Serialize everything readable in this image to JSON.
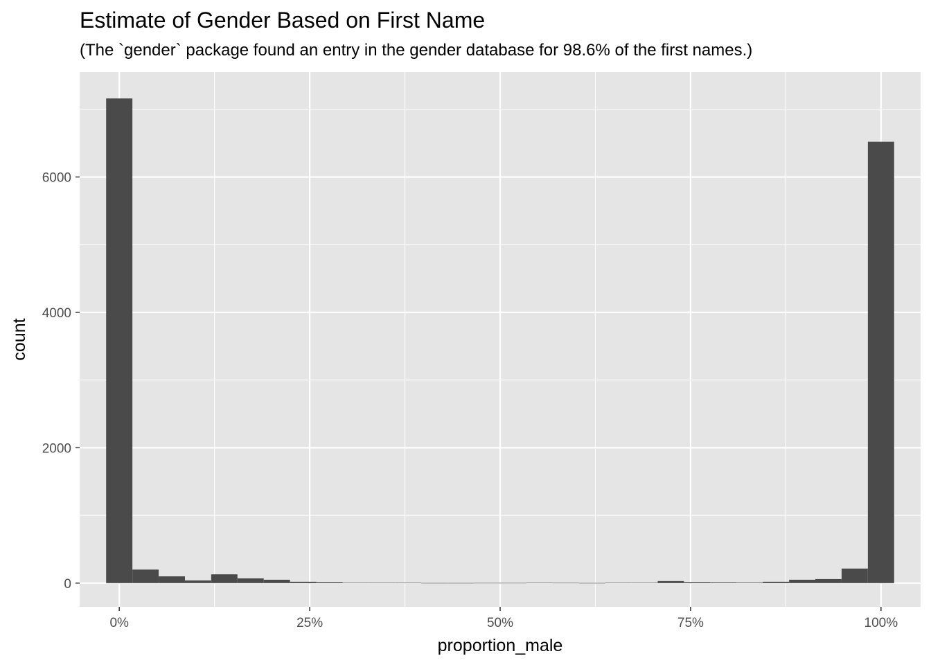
{
  "title": "Estimate of Gender Based on First Name",
  "subtitle": "(The `gender` package found an entry  in the gender database for 98.6% of the first names.)",
  "chart_data": {
    "type": "bar",
    "title": "Estimate of Gender Based on First Name",
    "subtitle": "(The `gender` package found an entry  in the gender database for 98.6% of the first names.)",
    "xlabel": "proportion_male",
    "ylabel": "count",
    "xlim": [
      -0.052,
      1.052
    ],
    "ylim": [
      -350,
      7550
    ],
    "x_ticks": [
      0,
      0.25,
      0.5,
      0.75,
      1
    ],
    "x_tick_labels": [
      "0%",
      "25%",
      "50%",
      "75%",
      "100%"
    ],
    "y_ticks": [
      0,
      2000,
      4000,
      6000
    ],
    "y_tick_labels": [
      "0",
      "2000",
      "4000",
      "6000"
    ],
    "bin_width": 0.03448,
    "bin_centers": [
      0,
      0.0345,
      0.069,
      0.1034,
      0.1379,
      0.1724,
      0.2069,
      0.2414,
      0.2759,
      0.3103,
      0.3448,
      0.3793,
      0.4138,
      0.4483,
      0.4828,
      0.5172,
      0.5517,
      0.5862,
      0.6207,
      0.6552,
      0.6897,
      0.7241,
      0.7586,
      0.7931,
      0.8276,
      0.8621,
      0.8966,
      0.931,
      0.9655,
      1
    ],
    "values": [
      7160,
      200,
      100,
      40,
      130,
      70,
      50,
      20,
      15,
      8,
      6,
      6,
      3,
      3,
      4,
      4,
      6,
      5,
      3,
      8,
      8,
      30,
      15,
      12,
      10,
      20,
      50,
      60,
      215,
      6520
    ],
    "grid": true,
    "bar_color": "#4a4a4a",
    "panel_color": "#e5e5e5",
    "grid_color": "#ffffff"
  }
}
